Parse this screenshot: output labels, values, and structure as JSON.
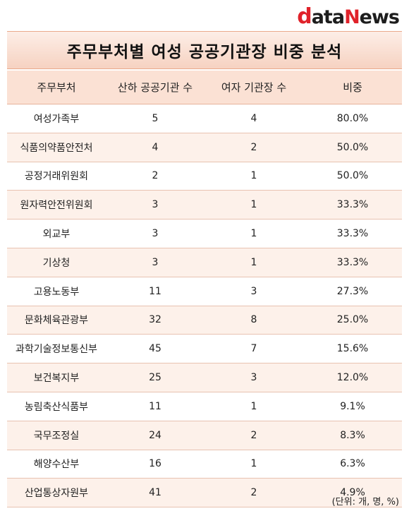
{
  "logo": {
    "d": "d",
    "ata": "ata",
    "n": "N",
    "ews": "ews"
  },
  "title": "주무부처별 여성 공공기관장 비중 분석",
  "headers": [
    "주무부처",
    "산하 공공기관 수",
    "여자 기관장 수",
    "비중"
  ],
  "rows": [
    {
      "ministry": "여성가족부",
      "agencies": "5",
      "women": "4",
      "ratio": "80.0%"
    },
    {
      "ministry": "식품의약품안전처",
      "agencies": "4",
      "women": "2",
      "ratio": "50.0%"
    },
    {
      "ministry": "공정거래위원회",
      "agencies": "2",
      "women": "1",
      "ratio": "50.0%"
    },
    {
      "ministry": "원자력안전위원회",
      "agencies": "3",
      "women": "1",
      "ratio": "33.3%"
    },
    {
      "ministry": "외교부",
      "agencies": "3",
      "women": "1",
      "ratio": "33.3%"
    },
    {
      "ministry": "기상청",
      "agencies": "3",
      "women": "1",
      "ratio": "33.3%"
    },
    {
      "ministry": "고용노동부",
      "agencies": "11",
      "women": "3",
      "ratio": "27.3%"
    },
    {
      "ministry": "문화체육관광부",
      "agencies": "32",
      "women": "8",
      "ratio": "25.0%"
    },
    {
      "ministry": "과학기술정보통신부",
      "agencies": "45",
      "women": "7",
      "ratio": "15.6%"
    },
    {
      "ministry": "보건복지부",
      "agencies": "25",
      "women": "3",
      "ratio": "12.0%"
    },
    {
      "ministry": "농림축산식품부",
      "agencies": "11",
      "women": "1",
      "ratio": "9.1%"
    },
    {
      "ministry": "국무조정실",
      "agencies": "24",
      "women": "2",
      "ratio": "8.3%"
    },
    {
      "ministry": "해양수산부",
      "agencies": "16",
      "women": "1",
      "ratio": "6.3%"
    },
    {
      "ministry": "산업통상자원부",
      "agencies": "41",
      "women": "2",
      "ratio": "4.9%"
    }
  ],
  "unit_note": "(단위: 개, 명, %)"
}
